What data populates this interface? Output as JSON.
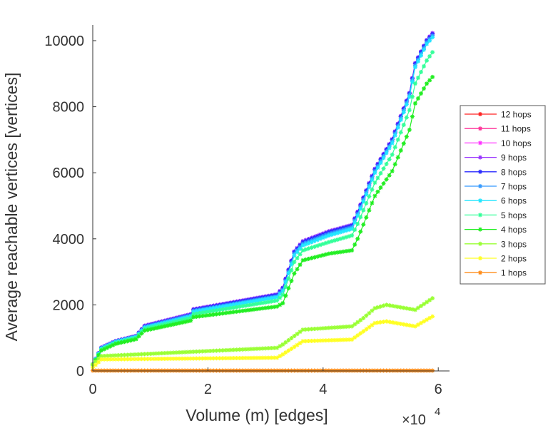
{
  "chart_data": {
    "type": "line",
    "title": "",
    "xlabel": "Volume (m) [edges]",
    "ylabel": "Average reachable vertices [vertices]",
    "x_exponent_label": "×10",
    "x_exponent": "4",
    "xlim": [
      0,
      62000
    ],
    "ylim": [
      0,
      10500
    ],
    "xticks": [
      0,
      20000,
      40000,
      60000
    ],
    "xtick_labels": [
      "0",
      "2",
      "4",
      "6"
    ],
    "yticks": [
      0,
      2000,
      4000,
      6000,
      8000,
      10000
    ],
    "ytick_labels": [
      "0",
      "2000",
      "4000",
      "6000",
      "8000",
      "10000"
    ],
    "grid": false,
    "legend_position": "right",
    "series": [
      {
        "name": "12 hops",
        "color": "#ff2020",
        "x": [
          0,
          1500,
          4000,
          7500,
          9000,
          17000,
          17500,
          32000,
          33000,
          35000,
          36500,
          41000,
          45000,
          46000,
          49000,
          52000,
          55000,
          56000,
          58000,
          59000
        ],
        "y": [
          200,
          700,
          900,
          1050,
          1350,
          1700,
          1850,
          2300,
          2500,
          3600,
          3900,
          4200,
          4400,
          4800,
          6100,
          7000,
          8400,
          9300,
          10000,
          10200
        ]
      },
      {
        "name": "11 hops",
        "color": "#ff3399",
        "x": [
          0,
          1500,
          4000,
          7500,
          9000,
          17000,
          17500,
          32000,
          33000,
          35000,
          36500,
          41000,
          45000,
          46000,
          49000,
          52000,
          55000,
          56000,
          58000,
          59000
        ],
        "y": [
          200,
          700,
          900,
          1050,
          1350,
          1700,
          1850,
          2300,
          2500,
          3600,
          3900,
          4200,
          4400,
          4800,
          6100,
          7000,
          8400,
          9300,
          10000,
          10200
        ]
      },
      {
        "name": "10 hops",
        "color": "#ff33ff",
        "x": [
          0,
          1500,
          4000,
          7500,
          9000,
          17000,
          17500,
          32000,
          33000,
          35000,
          36500,
          41000,
          45000,
          46000,
          49000,
          52000,
          55000,
          56000,
          58000,
          59000
        ],
        "y": [
          200,
          700,
          900,
          1050,
          1350,
          1700,
          1850,
          2300,
          2500,
          3600,
          3900,
          4200,
          4400,
          4800,
          6100,
          7000,
          8400,
          9300,
          10000,
          10200
        ]
      },
      {
        "name": "9 hops",
        "color": "#9933ff",
        "x": [
          0,
          1500,
          4000,
          7500,
          9000,
          17000,
          17500,
          32000,
          33000,
          35000,
          36500,
          41000,
          45000,
          46000,
          49000,
          52000,
          55000,
          56000,
          58000,
          59000
        ],
        "y": [
          200,
          710,
          910,
          1060,
          1370,
          1720,
          1870,
          2320,
          2520,
          3620,
          3930,
          4230,
          4420,
          4820,
          6120,
          7020,
          8420,
          9320,
          10020,
          10230
        ]
      },
      {
        "name": "8 hops",
        "color": "#2a2aff",
        "x": [
          0,
          1500,
          4000,
          7500,
          9000,
          17000,
          17500,
          32000,
          33000,
          35000,
          36500,
          41000,
          45000,
          46000,
          49000,
          52000,
          55000,
          56000,
          58000,
          59000
        ],
        "y": [
          200,
          700,
          900,
          1050,
          1350,
          1700,
          1850,
          2300,
          2500,
          3600,
          3900,
          4200,
          4400,
          4800,
          6100,
          7000,
          8400,
          9300,
          10000,
          10200
        ]
      },
      {
        "name": "7 hops",
        "color": "#3399ff",
        "x": [
          0,
          1500,
          4000,
          7500,
          9000,
          17000,
          17500,
          32000,
          33000,
          35000,
          36500,
          41000,
          45000,
          46000,
          49000,
          52000,
          55000,
          56000,
          58000,
          59000
        ],
        "y": [
          200,
          690,
          890,
          1040,
          1330,
          1680,
          1820,
          2260,
          2450,
          3550,
          3850,
          4150,
          4350,
          4750,
          6050,
          6950,
          8350,
          9250,
          9950,
          10150
        ]
      },
      {
        "name": "6 hops",
        "color": "#22e6ff",
        "x": [
          0,
          1500,
          4000,
          7500,
          9000,
          17000,
          17500,
          32000,
          33000,
          35000,
          36500,
          41000,
          45000,
          46000,
          49000,
          52000,
          55000,
          56000,
          58000,
          59000
        ],
        "y": [
          200,
          680,
          880,
          1030,
          1310,
          1650,
          1790,
          2230,
          2420,
          3500,
          3800,
          4100,
          4300,
          4700,
          6000,
          6900,
          8300,
          9200,
          9900,
          10100
        ]
      },
      {
        "name": "5 hops",
        "color": "#33ff99",
        "x": [
          0,
          1500,
          4000,
          7500,
          9000,
          17000,
          17500,
          32000,
          33000,
          35000,
          36500,
          41000,
          45000,
          46000,
          49000,
          52000,
          55000,
          56000,
          58000,
          59000
        ],
        "y": [
          190,
          650,
          850,
          1000,
          1270,
          1600,
          1720,
          2130,
          2300,
          3300,
          3650,
          3900,
          4100,
          4450,
          5700,
          6550,
          7900,
          8700,
          9400,
          9650
        ]
      },
      {
        "name": "4 hops",
        "color": "#22ee22",
        "x": [
          0,
          1500,
          4000,
          7500,
          9000,
          17000,
          17500,
          32000,
          33000,
          35000,
          36500,
          41000,
          45000,
          46000,
          49000,
          52000,
          55000,
          56000,
          58000,
          59000
        ],
        "y": [
          180,
          620,
          820,
          960,
          1220,
          1520,
          1630,
          1950,
          2050,
          2950,
          3350,
          3550,
          3650,
          4000,
          5300,
          6050,
          7300,
          8100,
          8700,
          8900
        ]
      },
      {
        "name": "3 hops",
        "color": "#99ff33",
        "x": [
          0,
          1500,
          32000,
          33000,
          36500,
          45000,
          47000,
          49000,
          51000,
          56000,
          59000
        ],
        "y": [
          200,
          450,
          700,
          800,
          1250,
          1350,
          1600,
          1900,
          2000,
          1850,
          2200
        ]
      },
      {
        "name": "2 hops",
        "color": "#ffff22",
        "x": [
          0,
          1500,
          32000,
          33000,
          36500,
          45000,
          47000,
          49000,
          51000,
          56000,
          59000
        ],
        "y": [
          100,
          350,
          400,
          500,
          900,
          950,
          1200,
          1450,
          1500,
          1350,
          1650
        ]
      },
      {
        "name": "1 hops",
        "color": "#ff8c1a",
        "x": [
          0,
          59000
        ],
        "y": [
          10,
          10
        ]
      }
    ]
  }
}
